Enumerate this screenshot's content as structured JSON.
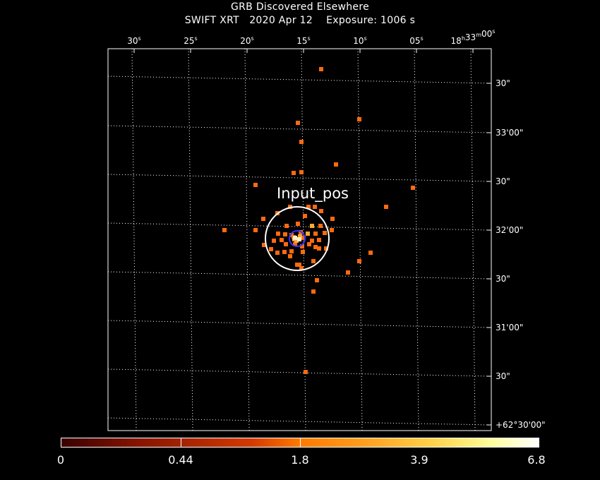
{
  "header": {
    "title": "GRB Discovered Elsewhere",
    "subtitle": "SWIFT XRT   2020 Apr 12    Exposure: 1006 s"
  },
  "axes": {
    "top_ticks": [
      {
        "main": "30",
        "sup": "s"
      },
      {
        "main": "25",
        "sup": "s"
      },
      {
        "main": "20",
        "sup": "s"
      },
      {
        "main": "15",
        "sup": "s"
      },
      {
        "main": "10",
        "sup": "s"
      },
      {
        "main": "05",
        "sup": "s"
      },
      {
        "main": "18",
        "sup": "h",
        "main2": "33",
        "sup2": "m",
        "main3": "00",
        "sup3": "s"
      }
    ],
    "right_ticks": [
      "30\"",
      "33'00\"",
      "30\"",
      "32'00\"",
      "30\"",
      "31'00\"",
      "30\"",
      "+62°30'00\""
    ],
    "grid": "dotted"
  },
  "source": {
    "label": "Input_pos",
    "colors": {
      "circle": "#ffffff",
      "centroid": "#3333ff",
      "photon": "#ff6a10",
      "bright": "#ffaa33",
      "frame": "#ffffff"
    }
  },
  "colorbar": {
    "labels": [
      "0",
      "0.44",
      "1.8",
      "3.9",
      "6.8"
    ],
    "min": 0,
    "max": 6.8
  },
  "photons": [
    [
      455,
      98
    ],
    [
      509,
      169
    ],
    [
      422,
      174
    ],
    [
      427,
      201
    ],
    [
      476,
      233
    ],
    [
      416,
      245
    ],
    [
      427,
      244
    ],
    [
      362,
      262
    ],
    [
      585,
      266
    ],
    [
      547,
      293
    ],
    [
      411,
      293
    ],
    [
      437,
      293
    ],
    [
      446,
      293
    ],
    [
      455,
      299
    ],
    [
      393,
      302
    ],
    [
      471,
      310
    ],
    [
      373,
      310
    ],
    [
      432,
      306
    ],
    [
      422,
      317
    ],
    [
      406,
      320
    ],
    [
      442,
      320
    ],
    [
      454,
      320
    ],
    [
      318,
      326
    ],
    [
      362,
      326
    ],
    [
      470,
      326
    ],
    [
      426,
      329
    ],
    [
      394,
      331
    ],
    [
      404,
      332
    ],
    [
      413,
      333
    ],
    [
      436,
      331
    ],
    [
      447,
      331
    ],
    [
      460,
      330
    ],
    [
      416,
      336
    ],
    [
      430,
      337
    ],
    [
      399,
      340
    ],
    [
      388,
      341
    ],
    [
      442,
      341
    ],
    [
      452,
      340
    ],
    [
      374,
      347
    ],
    [
      405,
      346
    ],
    [
      418,
      346
    ],
    [
      428,
      349
    ],
    [
      438,
      346
    ],
    [
      447,
      350
    ],
    [
      462,
      352
    ],
    [
      384,
      353
    ],
    [
      393,
      358
    ],
    [
      403,
      357
    ],
    [
      413,
      356
    ],
    [
      452,
      352
    ],
    [
      429,
      357
    ],
    [
      411,
      363
    ],
    [
      444,
      370
    ],
    [
      525,
      358
    ],
    [
      509,
      370
    ],
    [
      424,
      375
    ],
    [
      427,
      380
    ],
    [
      421,
      375
    ],
    [
      493,
      386
    ],
    [
      449,
      397
    ],
    [
      444,
      413
    ],
    [
      433,
      527
    ],
    [
      420,
      341
    ],
    [
      417,
      339
    ],
    [
      425,
      335
    ]
  ]
}
